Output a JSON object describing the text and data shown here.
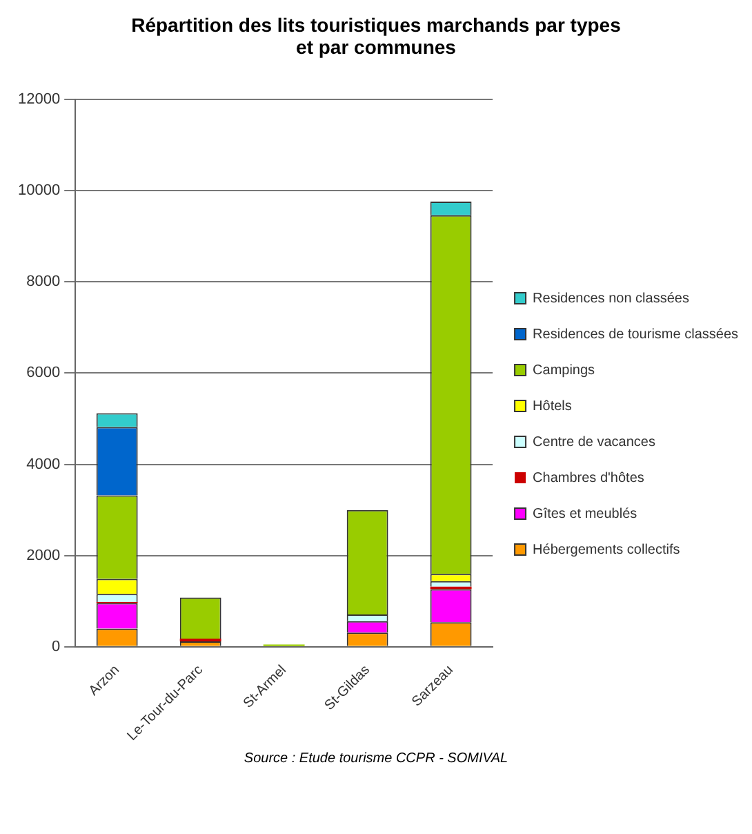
{
  "chart_data": {
    "type": "bar",
    "title": "Répartition des lits touristiques marchands par types et par communes",
    "categories": [
      "Arzon",
      "Le-Tour-du-Parc",
      "St-Armel",
      "St-Gildas",
      "Sarzeau"
    ],
    "stacked": true,
    "ylim": [
      0,
      12000
    ],
    "yticks": [
      0,
      2000,
      4000,
      6000,
      8000,
      10000,
      12000
    ],
    "grid": "y",
    "legend": "right",
    "annotations": [
      "Source : Etude tourisme CCPR - SOMIVAL"
    ],
    "series": [
      {
        "name": "Hébergements collectifs",
        "color": "#ff9900",
        "values": [
          400,
          120,
          0,
          310,
          540
        ]
      },
      {
        "name": "Gîtes et meublés",
        "color": "#ff00ff",
        "values": [
          560,
          0,
          0,
          250,
          720
        ]
      },
      {
        "name": "Chambres d'hôtes",
        "color": "#cc0000",
        "values": [
          20,
          60,
          0,
          0,
          60
        ]
      },
      {
        "name": "Centre de vacances",
        "color": "#ccffff",
        "values": [
          180,
          0,
          0,
          150,
          120
        ]
      },
      {
        "name": "Hôtels",
        "color": "#ffff00",
        "values": [
          330,
          0,
          0,
          0,
          160
        ]
      },
      {
        "name": "Campings",
        "color": "#99cc00",
        "values": [
          1830,
          900,
          50,
          2290,
          7860
        ]
      },
      {
        "name": "Residences de tourisme classées",
        "color": "#0066cc",
        "values": [
          1500,
          0,
          0,
          0,
          0
        ]
      },
      {
        "name": "Residences non classées",
        "color": "#33cccc",
        "values": [
          300,
          0,
          0,
          0,
          300
        ]
      }
    ]
  }
}
